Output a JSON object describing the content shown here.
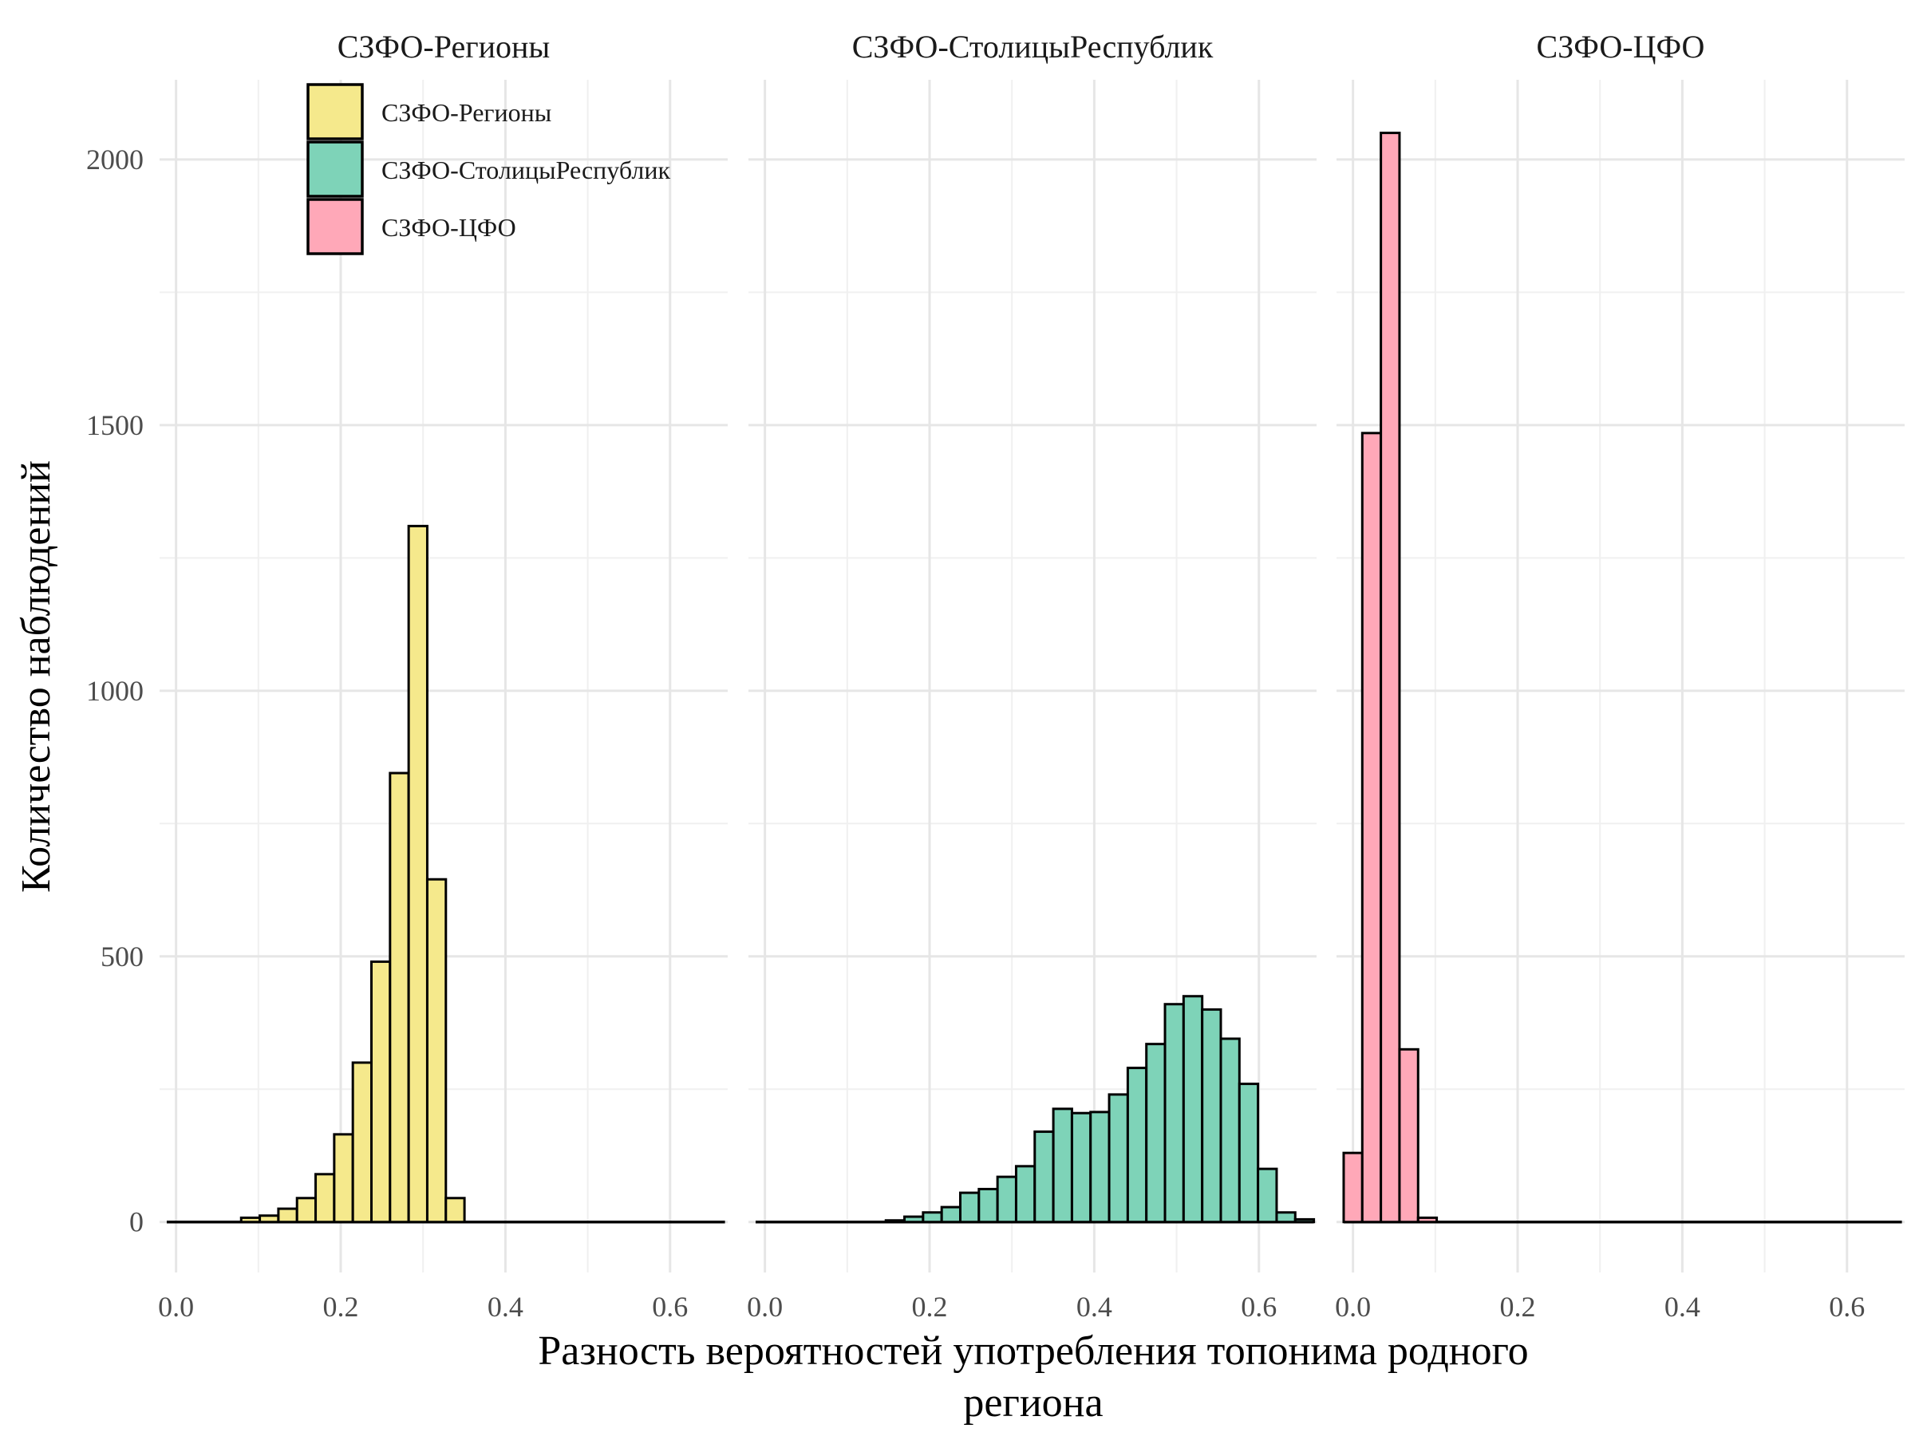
{
  "chart_data": {
    "type": "bar",
    "subtype": "faceted histogram",
    "xlabel_lines": [
      "Разность вероятностей употребления топонима родного",
      "региона"
    ],
    "ylabel": "Количество наблюдений",
    "xlim": [
      -0.02,
      0.67
    ],
    "ylim": [
      -95,
      2150
    ],
    "x_ticks": [
      0.0,
      0.2,
      0.4,
      0.6
    ],
    "x_tick_labels": [
      "0.0",
      "0.2",
      "0.4",
      "0.6"
    ],
    "y_ticks": [
      0,
      500,
      1000,
      1500,
      2000
    ],
    "y_tick_labels": [
      "0",
      "500",
      "1000",
      "1500",
      "2000"
    ],
    "grid": true,
    "legend": {
      "position": "top-left",
      "entries": [
        {
          "label": "СЗФО-Регионы",
          "color": "#F5E98C"
        },
        {
          "label": "СЗФО-СтолицыРеспублик",
          "color": "#7ED3B8"
        },
        {
          "label": "СЗФО-ЦФО",
          "color": "#FFA8B8"
        }
      ]
    },
    "bin_width": 0.0226,
    "x_range_drawn": [
      -0.0113,
      0.6667
    ],
    "panels": [
      {
        "name": "СЗФО-Регионы",
        "color": "#F5E98C",
        "bin_centers": [
          0.0904,
          0.113,
          0.1356,
          0.1582,
          0.1808,
          0.2034,
          0.226,
          0.2486,
          0.2712,
          0.2938,
          0.3164,
          0.339
        ],
        "counts": [
          8,
          12,
          25,
          45,
          90,
          165,
          300,
          490,
          845,
          1310,
          645,
          45
        ]
      },
      {
        "name": "СЗФО-СтолицыРеспублик",
        "color": "#7ED3B8",
        "bin_centers": [
          0.1582,
          0.1808,
          0.2034,
          0.226,
          0.2486,
          0.2712,
          0.2938,
          0.3164,
          0.339,
          0.3616,
          0.3842,
          0.4068,
          0.4294,
          0.452,
          0.4746,
          0.4972,
          0.5198,
          0.5424,
          0.565,
          0.5876,
          0.6102,
          0.6328,
          0.6554
        ],
        "counts": [
          3,
          10,
          18,
          28,
          55,
          62,
          85,
          105,
          170,
          213,
          205,
          207,
          240,
          290,
          335,
          410,
          425,
          400,
          345,
          260,
          100,
          18,
          5
        ]
      },
      {
        "name": "СЗФО-ЦФО",
        "color": "#FFA8B8",
        "bin_centers": [
          0.0,
          0.0226,
          0.0452,
          0.0678,
          0.0904
        ],
        "counts": [
          130,
          1485,
          2050,
          325,
          8
        ]
      }
    ]
  }
}
